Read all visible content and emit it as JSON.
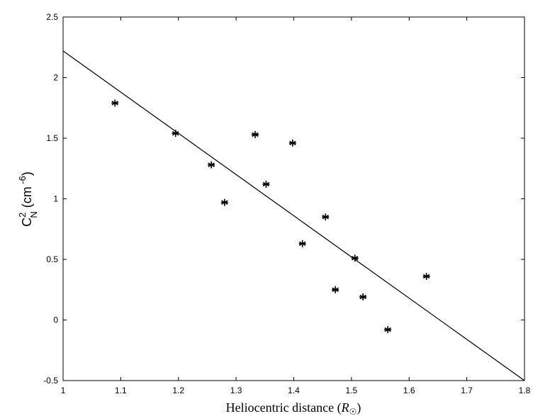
{
  "chart_data": {
    "type": "scatter",
    "title": "",
    "xlabel": "Heliocentric distance (R☉)",
    "ylabel": "C²N (cm⁻⁶)",
    "xlabel_parts": {
      "main": "Heliocentric distance (",
      "symbol": "R",
      "subscript": "☉",
      "close": ")"
    },
    "ylabel_parts": {
      "base": "C",
      "sup": "2",
      "sub": "N",
      "unit_open": " (cm",
      "unit_sup": " -6",
      "unit_close": ")"
    },
    "xlim": [
      1.0,
      1.8
    ],
    "ylim": [
      -0.5,
      2.5
    ],
    "x_ticks": [
      "1",
      "1.1",
      "1.2",
      "1.3",
      "1.4",
      "1.5",
      "1.6",
      "1.7",
      "1.8"
    ],
    "y_ticks": [
      "-0.5",
      "0",
      "0.5",
      "1",
      "1.5",
      "2",
      "2.5"
    ],
    "grid": false,
    "series": [
      {
        "type": "scatter",
        "marker": "asterisk",
        "x": [
          1.09,
          1.195,
          1.257,
          1.28,
          1.333,
          1.352,
          1.398,
          1.415,
          1.455,
          1.472,
          1.506,
          1.52,
          1.563,
          1.63
        ],
        "y": [
          1.79,
          1.54,
          1.28,
          0.97,
          1.53,
          1.12,
          1.46,
          0.63,
          0.85,
          0.25,
          0.51,
          0.19,
          -0.08,
          0.36
        ]
      },
      {
        "type": "line",
        "x": [
          1.0,
          1.8
        ],
        "y": [
          2.22,
          -0.5
        ]
      }
    ],
    "colors": {
      "axes": "#000000",
      "markers": "#000000",
      "line": "#000000"
    }
  }
}
